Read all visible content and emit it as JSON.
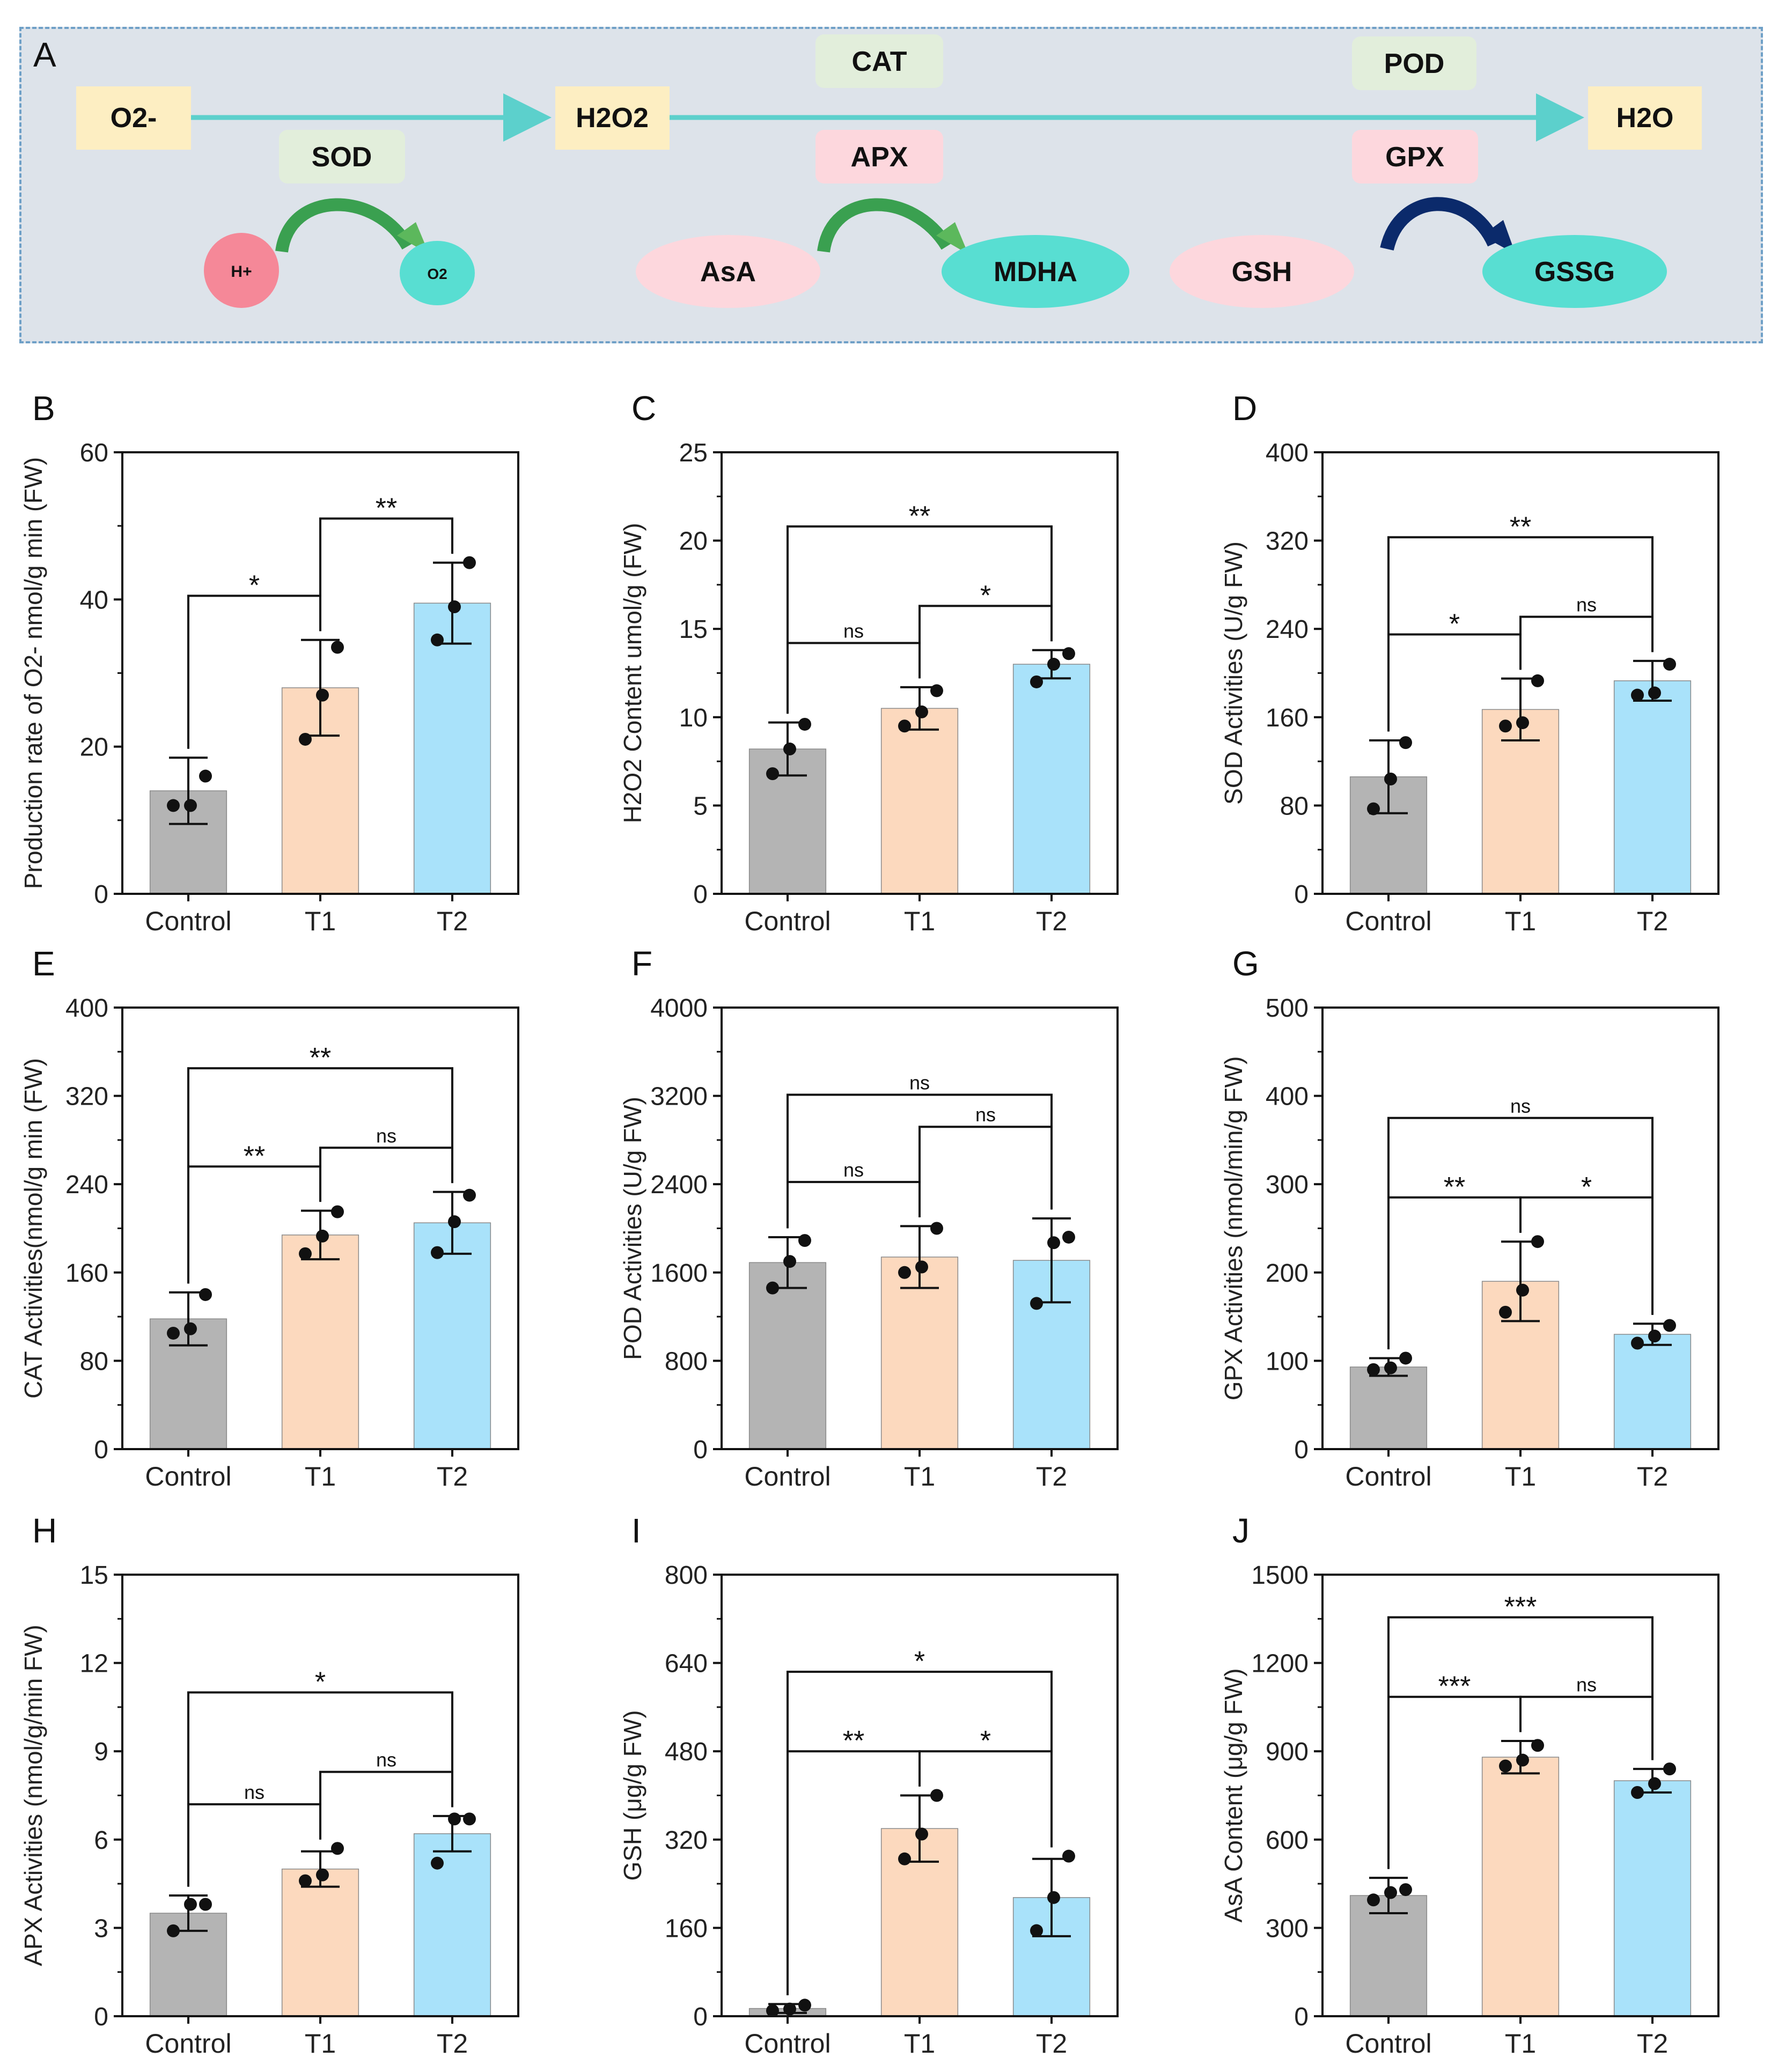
{
  "colors": {
    "control": "#b4b4b4",
    "t1": "#fcd9be",
    "t2": "#a9e2fa",
    "arrow": "#5cd0cc",
    "yellow_box": "#fdeec2",
    "green_box": "#e2eedb",
    "pink_box": "#fdd7dd",
    "h_circle": "#f58898",
    "cyan_ellipse": "#58ded2",
    "pink_ellipse": "#fdd7dd",
    "green_arrow": "#3aa050",
    "navy_arrow": "#0b2a6b"
  },
  "pathway": {
    "panel_label": "A",
    "o2_minus": "O2-",
    "h2o2": "H2O2",
    "h2o": "H2O",
    "sod": "SOD",
    "cat": "CAT",
    "apx": "APX",
    "pod": "POD",
    "gpx": "GPX",
    "h_plus": "H+",
    "o2": "O2",
    "asa": "AsA",
    "mdha": "MDHA",
    "gsh": "GSH",
    "gssg": "GSSG"
  },
  "chart_data": [
    {
      "panel": "B",
      "type": "bar",
      "ylabel": "Production rate of O2- nmol/g min (FW)",
      "categories": [
        "Control",
        "T1",
        "T2"
      ],
      "ylim": [
        0,
        60
      ],
      "yticks": [
        "0",
        "20",
        "40",
        "60"
      ],
      "ytick_values": [
        0,
        20,
        40,
        60
      ],
      "values": [
        14,
        28,
        39.5
      ],
      "err": [
        4.5,
        6.5,
        5.5
      ],
      "points": [
        [
          12,
          12,
          16
        ],
        [
          21,
          27,
          33.5
        ],
        [
          34.5,
          39,
          45
        ]
      ],
      "comparisons": [
        {
          "a": 0,
          "b": 1,
          "label": "*"
        },
        {
          "a": 1,
          "b": 2,
          "label": "**"
        }
      ]
    },
    {
      "panel": "C",
      "type": "bar",
      "ylabel": "H2O2 Content umol/g (FW)",
      "categories": [
        "Control",
        "T1",
        "T2"
      ],
      "ylim": [
        0,
        25
      ],
      "yticks": [
        "0",
        "5",
        "10",
        "15",
        "20",
        "25"
      ],
      "ytick_values": [
        0,
        5,
        10,
        15,
        20,
        25
      ],
      "values": [
        8.2,
        10.5,
        13
      ],
      "err": [
        1.5,
        1.2,
        0.8
      ],
      "points": [
        [
          6.8,
          8.2,
          9.6
        ],
        [
          9.5,
          10.3,
          11.5
        ],
        [
          12,
          13,
          13.6
        ]
      ],
      "comparisons": [
        {
          "a": 0,
          "b": 1,
          "label": "ns"
        },
        {
          "a": 1,
          "b": 2,
          "label": "*"
        },
        {
          "a": 0,
          "b": 2,
          "label": "**"
        }
      ]
    },
    {
      "panel": "D",
      "type": "bar",
      "ylabel": "SOD Activities (U/g FW)",
      "categories": [
        "Control",
        "T1",
        "T2"
      ],
      "ylim": [
        0,
        400
      ],
      "yticks": [
        "0",
        "80",
        "160",
        "240",
        "320",
        "400"
      ],
      "ytick_values": [
        0,
        80,
        160,
        240,
        320,
        400
      ],
      "values": [
        106,
        167,
        193
      ],
      "err": [
        33,
        28,
        18
      ],
      "points": [
        [
          77,
          104,
          137
        ],
        [
          152,
          155,
          193
        ],
        [
          180,
          182,
          208
        ]
      ],
      "comparisons": [
        {
          "a": 0,
          "b": 1,
          "label": "*"
        },
        {
          "a": 1,
          "b": 2,
          "label": "ns"
        },
        {
          "a": 0,
          "b": 2,
          "label": "**"
        }
      ]
    },
    {
      "panel": "E",
      "type": "bar",
      "ylabel": "CAT Activities(nmol/g min (FW)",
      "categories": [
        "Control",
        "T1",
        "T2"
      ],
      "ylim": [
        0,
        400
      ],
      "yticks": [
        "0",
        "80",
        "160",
        "240",
        "320",
        "400"
      ],
      "ytick_values": [
        0,
        80,
        160,
        240,
        320,
        400
      ],
      "values": [
        118,
        194,
        205
      ],
      "err": [
        24,
        22,
        28
      ],
      "points": [
        [
          105,
          109,
          140
        ],
        [
          177,
          193,
          215
        ],
        [
          178,
          206,
          230
        ]
      ],
      "comparisons": [
        {
          "a": 0,
          "b": 1,
          "label": "**"
        },
        {
          "a": 1,
          "b": 2,
          "label": "ns"
        },
        {
          "a": 0,
          "b": 2,
          "label": "**"
        }
      ]
    },
    {
      "panel": "F",
      "type": "bar",
      "ylabel": "POD Activities (U/g FW)",
      "categories": [
        "Control",
        "T1",
        "T2"
      ],
      "ylim": [
        0,
        4000
      ],
      "yticks": [
        "0",
        "800",
        "1600",
        "2400",
        "3200",
        "4000"
      ],
      "ytick_values": [
        0,
        800,
        1600,
        2400,
        3200,
        4000
      ],
      "values": [
        1690,
        1740,
        1710
      ],
      "err": [
        230,
        280,
        380
      ],
      "points": [
        [
          1460,
          1700,
          1890
        ],
        [
          1600,
          1650,
          2000
        ],
        [
          1320,
          1870,
          1920
        ]
      ],
      "comparisons": [
        {
          "a": 0,
          "b": 1,
          "label": "ns"
        },
        {
          "a": 1,
          "b": 2,
          "label": "ns"
        },
        {
          "a": 0,
          "b": 2,
          "label": "ns"
        }
      ]
    },
    {
      "panel": "G",
      "type": "bar",
      "ylabel": "GPX Activities  (nmol/min/g FW)",
      "categories": [
        "Control",
        "T1",
        "T2"
      ],
      "ylim": [
        0,
        500
      ],
      "yticks": [
        "0",
        "100",
        "200",
        "300",
        "400",
        "500"
      ],
      "ytick_values": [
        0,
        100,
        200,
        300,
        400,
        500
      ],
      "values": [
        93,
        190,
        130
      ],
      "err": [
        10,
        45,
        12
      ],
      "points": [
        [
          90,
          92,
          103
        ],
        [
          155,
          180,
          235
        ],
        [
          120,
          128,
          140
        ]
      ],
      "comparisons": [
        {
          "a": 0,
          "b": 1,
          "label": "**"
        },
        {
          "a": 1,
          "b": 2,
          "label": "*"
        },
        {
          "a": 0,
          "b": 2,
          "label": "ns"
        }
      ]
    },
    {
      "panel": "H",
      "type": "bar",
      "ylabel": "APX Activities  (nmol/g/min FW)",
      "categories": [
        "Control",
        "T1",
        "T2"
      ],
      "ylim": [
        0,
        15
      ],
      "yticks": [
        "0",
        "3",
        "6",
        "9",
        "12",
        "15"
      ],
      "ytick_values": [
        0,
        3,
        6,
        9,
        12,
        15
      ],
      "values": [
        3.5,
        5.0,
        6.2
      ],
      "err": [
        0.6,
        0.6,
        0.6
      ],
      "points": [
        [
          2.9,
          3.8,
          3.8
        ],
        [
          4.6,
          4.8,
          5.7
        ],
        [
          5.2,
          6.7,
          6.7
        ]
      ],
      "comparisons": [
        {
          "a": 0,
          "b": 1,
          "label": "ns"
        },
        {
          "a": 1,
          "b": 2,
          "label": "ns"
        },
        {
          "a": 0,
          "b": 2,
          "label": "*"
        }
      ]
    },
    {
      "panel": "I",
      "type": "bar",
      "ylabel": "GSH (μg/g FW)",
      "categories": [
        "Control",
        "T1",
        "T2"
      ],
      "ylim": [
        0,
        800
      ],
      "yticks": [
        "0",
        "160",
        "320",
        "480",
        "640",
        "800"
      ],
      "ytick_values": [
        0,
        160,
        320,
        480,
        640,
        800
      ],
      "values": [
        14,
        340,
        215
      ],
      "err": [
        8,
        60,
        70
      ],
      "points": [
        [
          10,
          13,
          20
        ],
        [
          285,
          330,
          400
        ],
        [
          155,
          215,
          290
        ]
      ],
      "comparisons": [
        {
          "a": 0,
          "b": 1,
          "label": "**"
        },
        {
          "a": 1,
          "b": 2,
          "label": "*"
        },
        {
          "a": 0,
          "b": 2,
          "label": "*"
        }
      ]
    },
    {
      "panel": "J",
      "type": "bar",
      "ylabel": "AsA Content (μg/g FW)",
      "categories": [
        "Control",
        "T1",
        "T2"
      ],
      "ylim": [
        0,
        1500
      ],
      "yticks": [
        "0",
        "300",
        "600",
        "900",
        "1200",
        "1500"
      ],
      "ytick_values": [
        0,
        300,
        600,
        900,
        1200,
        1500
      ],
      "values": [
        410,
        880,
        800
      ],
      "err": [
        60,
        55,
        40
      ],
      "points": [
        [
          395,
          420,
          430
        ],
        [
          850,
          870,
          920
        ],
        [
          760,
          790,
          840
        ]
      ],
      "comparisons": [
        {
          "a": 0,
          "b": 1,
          "label": "***"
        },
        {
          "a": 1,
          "b": 2,
          "label": "ns"
        },
        {
          "a": 0,
          "b": 2,
          "label": "***"
        }
      ]
    }
  ]
}
